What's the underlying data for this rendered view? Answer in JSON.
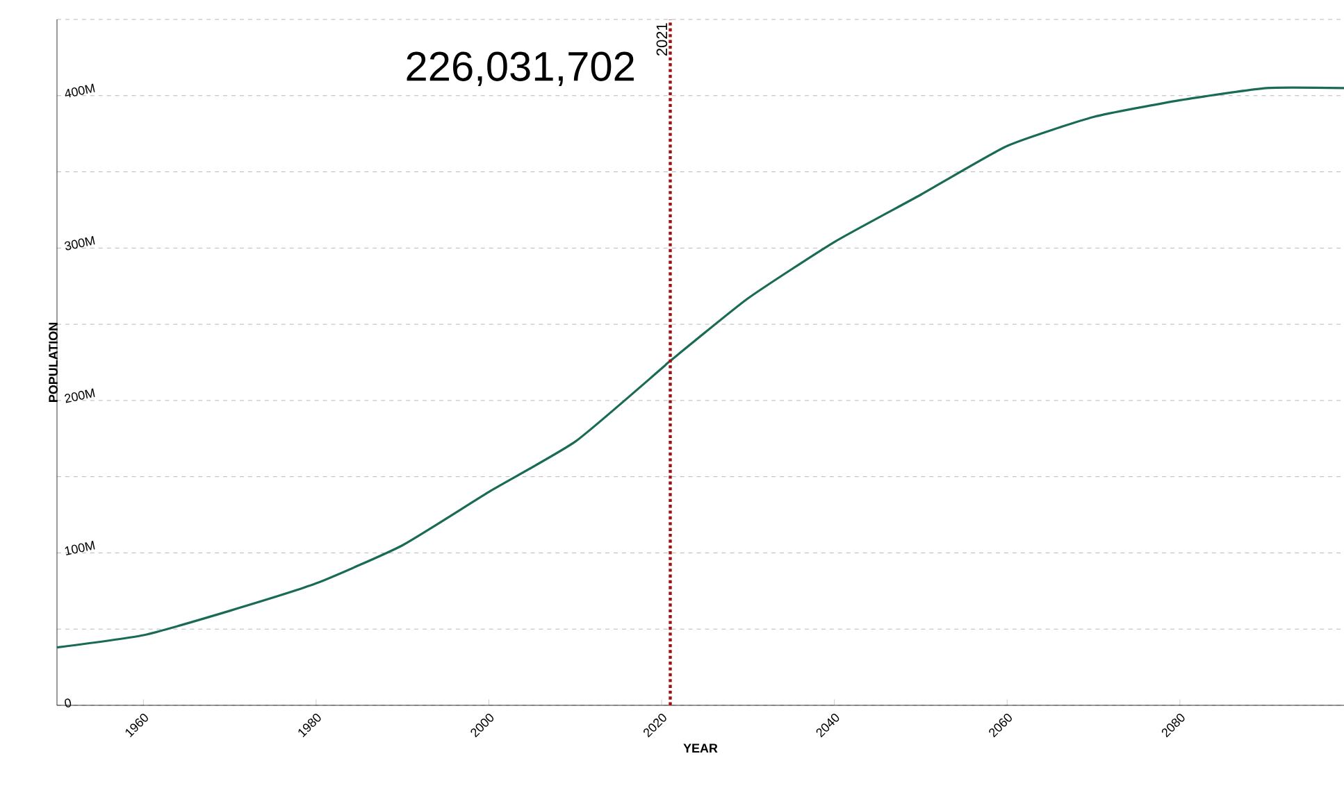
{
  "chart_data": {
    "type": "line",
    "xlabel": "YEAR",
    "ylabel": "POPULATION",
    "annotations": [
      "226,031,702"
    ],
    "x": [
      1950,
      1960,
      1970,
      1980,
      1990,
      2000,
      2010,
      2020,
      2021,
      2030,
      2040,
      2050,
      2060,
      2070,
      2080,
      2090,
      2099
    ],
    "series": [
      {
        "color": "#1a6b55",
        "values": [
          38,
          46,
          62,
          80,
          105,
          140,
          173,
          221,
          226,
          267,
          304,
          335,
          367,
          386,
          397,
          405,
          405
        ]
      }
    ],
    "xlim": [
      1950,
      2099
    ],
    "xticks": [
      1960,
      1980,
      2000,
      2020,
      2040,
      2060,
      2080
    ],
    "ylim": [
      0,
      450
    ],
    "yticks": [
      0,
      {
        "value": 50,
        "label": null
      },
      {
        "value": 100,
        "label": "100M"
      },
      {
        "value": 150,
        "label": null
      },
      {
        "value": 200,
        "label": "200M"
      },
      {
        "value": 250,
        "label": null
      },
      {
        "value": 300,
        "label": "300M"
      },
      {
        "value": 350,
        "label": null
      },
      {
        "value": 400,
        "label": "400M"
      },
      {
        "value": 450,
        "label": null
      }
    ],
    "ref_lines": [
      {
        "axis": "x",
        "value": 2021,
        "label": "2021",
        "color": "#a01010",
        "line_style": "dotted"
      }
    ],
    "grid": "y",
    "marker": "none",
    "line_style": "solid"
  }
}
